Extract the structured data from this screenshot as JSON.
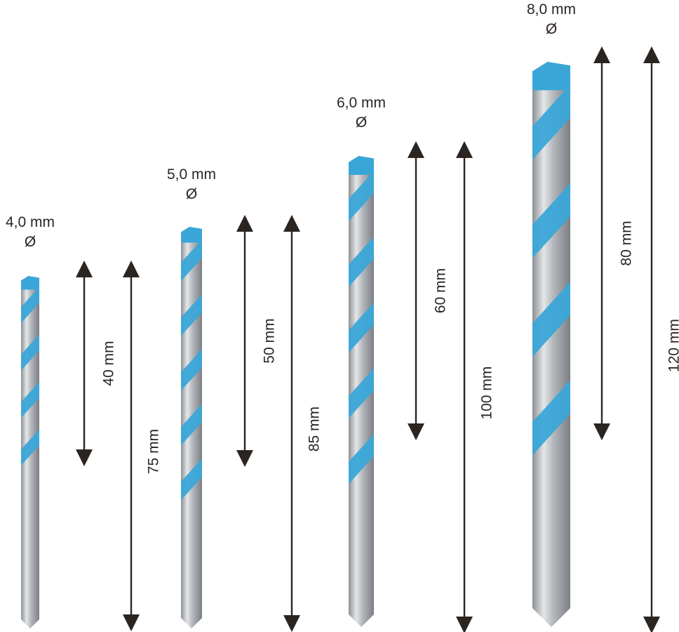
{
  "colors": {
    "flute": "#3aa6d8",
    "shank": "#b9bcc0",
    "arrow": "#2b2522"
  },
  "diameter_symbol": "Ø",
  "bits": [
    {
      "diameter": "4,0 mm",
      "working_length": "40 mm",
      "total_length": "75 mm"
    },
    {
      "diameter": "5,0 mm",
      "working_length": "50 mm",
      "total_length": "85 mm"
    },
    {
      "diameter": "6,0 mm",
      "working_length": "60 mm",
      "total_length": "100 mm"
    },
    {
      "diameter": "8,0 mm",
      "working_length": "80 mm",
      "total_length": "120 mm"
    }
  ]
}
